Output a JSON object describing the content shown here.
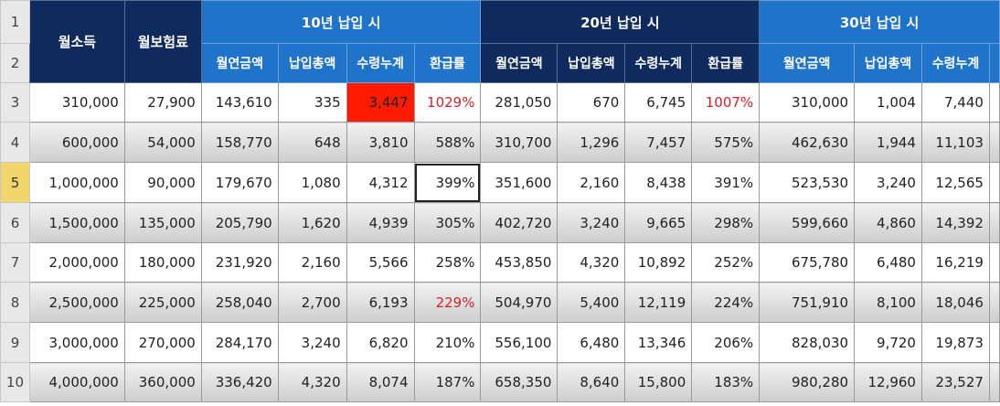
{
  "row_numbers": [
    "1",
    "2",
    "3",
    "4",
    "5",
    "6",
    "7",
    "8",
    "9",
    "10"
  ],
  "selected_row": "5",
  "headers": {
    "monthly_income": "월소득",
    "monthly_premium": "월보험료",
    "group_10": "10년 납입 시",
    "group_20": "20년 납입 시",
    "group_30": "30년 납입 시",
    "pension": "월연금액",
    "total_paid": "납입총액",
    "cumulative": "수령누계",
    "refund_rate": "환급률"
  },
  "rows": [
    {
      "income": "310,000",
      "premium": "27,900",
      "p10": "143,610",
      "t10": "335",
      "c10": "3,447",
      "r10": "1029%",
      "p20": "281,050",
      "t20": "670",
      "c20": "6,745",
      "r20": "1007%",
      "p30": "310,000",
      "t30": "1,004",
      "c30": "7,440"
    },
    {
      "income": "600,000",
      "premium": "54,000",
      "p10": "158,770",
      "t10": "648",
      "c10": "3,810",
      "r10": "588%",
      "p20": "310,700",
      "t20": "1,296",
      "c20": "7,457",
      "r20": "575%",
      "p30": "462,630",
      "t30": "1,944",
      "c30": "11,103"
    },
    {
      "income": "1,000,000",
      "premium": "90,000",
      "p10": "179,670",
      "t10": "1,080",
      "c10": "4,312",
      "r10": "399%",
      "p20": "351,600",
      "t20": "2,160",
      "c20": "8,438",
      "r20": "391%",
      "p30": "523,530",
      "t30": "3,240",
      "c30": "12,565"
    },
    {
      "income": "1,500,000",
      "premium": "135,000",
      "p10": "205,790",
      "t10": "1,620",
      "c10": "4,939",
      "r10": "305%",
      "p20": "402,720",
      "t20": "3,240",
      "c20": "9,665",
      "r20": "298%",
      "p30": "599,660",
      "t30": "4,860",
      "c30": "14,392"
    },
    {
      "income": "2,000,000",
      "premium": "180,000",
      "p10": "231,920",
      "t10": "2,160",
      "c10": "5,566",
      "r10": "258%",
      "p20": "453,850",
      "t20": "4,320",
      "c20": "10,892",
      "r20": "252%",
      "p30": "675,780",
      "t30": "6,480",
      "c30": "16,219"
    },
    {
      "income": "2,500,000",
      "premium": "225,000",
      "p10": "258,040",
      "t10": "2,700",
      "c10": "6,193",
      "r10": "229%",
      "p20": "504,970",
      "t20": "5,400",
      "c20": "12,119",
      "r20": "224%",
      "p30": "751,910",
      "t30": "8,100",
      "c30": "18,046"
    },
    {
      "income": "3,000,000",
      "premium": "270,000",
      "p10": "284,170",
      "t10": "3,240",
      "c10": "6,820",
      "r10": "210%",
      "p20": "556,100",
      "t20": "6,480",
      "c20": "13,346",
      "r20": "206%",
      "p30": "828,030",
      "t30": "9,720",
      "c30": "19,873"
    },
    {
      "income": "4,000,000",
      "premium": "360,000",
      "p10": "336,420",
      "t10": "4,320",
      "c10": "8,074",
      "r10": "187%",
      "p20": "658,350",
      "t20": "8,640",
      "c20": "15,800",
      "r20": "183%",
      "p30": "980,280",
      "t30": "12,960",
      "c30": "23,527"
    }
  ],
  "highlights": {
    "red_fill_color": "#ff1a00",
    "red_text_color": "#d4222a",
    "header_dark_color": "#0f2a5c",
    "header_blue_color": "#1f73c8"
  }
}
